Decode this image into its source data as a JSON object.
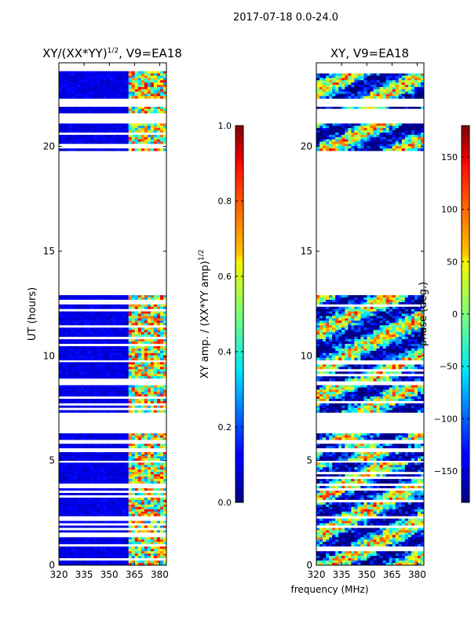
{
  "suptitle": "2017-07-18 0.0-24.0",
  "shared_xlabel": "frequency (MHz)",
  "chart_data": [
    {
      "type": "heatmap",
      "title_main": "XY/(XX*YY)",
      "title_sup": "1/2",
      "title_rest": ", V9=EA18",
      "xlabel": "frequency (MHz)",
      "ylabel": "UT (hours)",
      "xlim": [
        320,
        384
      ],
      "ylim": [
        0,
        24
      ],
      "xticks": [
        320,
        335,
        350,
        365,
        380
      ],
      "yticks": [
        0,
        5,
        10,
        15,
        20
      ],
      "valid_time_ranges": [
        [
          0.0,
          4.9
        ],
        [
          5.0,
          5.4
        ],
        [
          5.6,
          5.8
        ],
        [
          6.0,
          6.3
        ],
        [
          7.3,
          8.6
        ],
        [
          8.8,
          9.7
        ],
        [
          9.8,
          12.9
        ],
        [
          19.8,
          21.1
        ],
        [
          21.6,
          21.9
        ],
        [
          22.3,
          23.6
        ]
      ],
      "colorbar": {
        "label_main": "XY amp. / (XX*YY amp)",
        "label_sup": "1/2",
        "range": [
          0.0,
          1.0
        ],
        "ticks": [
          "0.0",
          "0.2",
          "0.4",
          "0.6",
          "0.8",
          "1.0"
        ],
        "tick_values": [
          0.0,
          0.2,
          0.4,
          0.6,
          0.8,
          1.0
        ]
      }
    },
    {
      "type": "heatmap",
      "title": "XY, V9=EA18",
      "xlabel": "frequency (MHz)",
      "ylabel": "",
      "xlim": [
        320,
        384
      ],
      "ylim": [
        0,
        24
      ],
      "xticks": [
        320,
        335,
        350,
        365,
        380
      ],
      "yticks": [
        0,
        5,
        10,
        15,
        20
      ],
      "valid_time_ranges": [
        [
          0.0,
          4.9
        ],
        [
          5.0,
          5.4
        ],
        [
          5.6,
          5.8
        ],
        [
          6.0,
          6.3
        ],
        [
          7.3,
          8.6
        ],
        [
          8.8,
          9.7
        ],
        [
          9.8,
          12.9
        ],
        [
          19.8,
          21.1
        ],
        [
          21.6,
          21.9
        ],
        [
          22.3,
          23.6
        ]
      ],
      "colorbar": {
        "label": "phase (deg.)",
        "range": [
          -180,
          180
        ],
        "ticks": [
          "−150",
          "−100",
          "−50",
          "0",
          "50",
          "100",
          "150"
        ],
        "tick_values": [
          -150,
          -100,
          -50,
          0,
          50,
          100,
          150
        ]
      }
    }
  ]
}
